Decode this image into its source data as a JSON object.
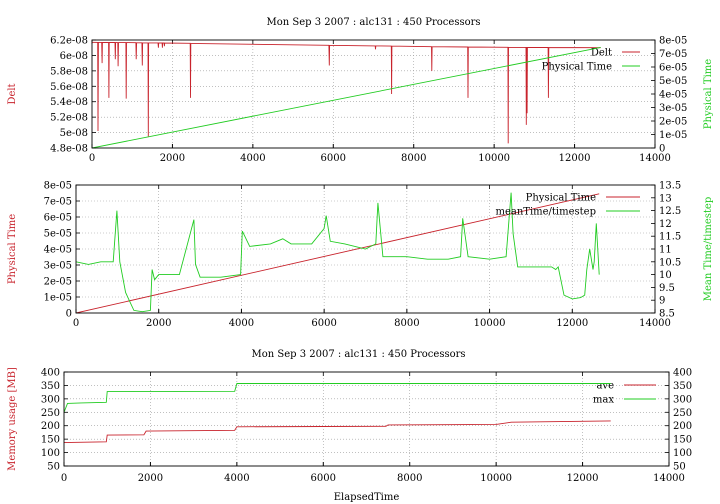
{
  "figure_background": "#ffffff",
  "chart_data": [
    {
      "type": "line",
      "title": "Mon Sep 3 2007 : alc131 : 450 Processors",
      "xlabel": "",
      "ylabel": "Delt",
      "y2label": "Physical Time",
      "ylabel_color": "#c8232c",
      "y2label_color": "#22cc22",
      "xlim": [
        0,
        14000
      ],
      "ylim": [
        4.8e-08,
        6.2e-08
      ],
      "y2lim": [
        0,
        8e-05
      ],
      "xticks": [
        "0",
        "2000",
        "4000",
        "6000",
        "8000",
        "10000",
        "12000",
        "14000"
      ],
      "yticks": [
        "4.8e-08",
        "5e-08",
        "5.2e-08",
        "5.4e-08",
        "5.6e-08",
        "5.8e-08",
        "6e-08",
        "6.2e-08"
      ],
      "y2ticks": [
        "0",
        "1e-05",
        "2e-05",
        "3e-05",
        "4e-05",
        "5e-05",
        "6e-05",
        "7e-05",
        "8e-05"
      ],
      "grid": true,
      "legend_position": "top-right",
      "series": [
        {
          "name": "Delt",
          "color": "#c8232c",
          "axis": "y",
          "baseline": [
            [
              0,
              6.17e-08
            ],
            [
              2000,
              6.16e-08
            ],
            [
              6000,
              6.13e-08
            ],
            [
              9000,
              6.11e-08
            ],
            [
              12000,
              6.1e-08
            ],
            [
              12650,
              6.1e-08
            ]
          ],
          "dips": [
            [
              150,
              5.02e-08
            ],
            [
              250,
              5.9e-08
            ],
            [
              420,
              5.45e-08
            ],
            [
              580,
              5.95e-08
            ],
            [
              650,
              5.86e-08
            ],
            [
              850,
              5.44e-08
            ],
            [
              1100,
              5.95e-08
            ],
            [
              1250,
              5.87e-08
            ],
            [
              1400,
              4.95e-08
            ],
            [
              1650,
              6.1e-08
            ],
            [
              1750,
              6.1e-08
            ],
            [
              1800,
              6.12e-08
            ],
            [
              2450,
              5.45e-08
            ],
            [
              5900,
              5.87e-08
            ],
            [
              7050,
              6.08e-08
            ],
            [
              7450,
              5.5e-08
            ],
            [
              8450,
              5.8e-08
            ],
            [
              9350,
              5.45e-08
            ],
            [
              10350,
              4.86e-08
            ],
            [
              10800,
              5.1e-08
            ],
            [
              10820,
              5.25e-08
            ],
            [
              11350,
              5.45e-08
            ]
          ]
        },
        {
          "name": "Physical Time",
          "color": "#22cc22",
          "axis": "y2",
          "x": [
            0,
            12650
          ],
          "y": [
            0,
            7.45e-05
          ]
        }
      ]
    },
    {
      "type": "line",
      "title": "",
      "xlabel": "",
      "ylabel": "Physical Time",
      "y2label": "Mean Time/timestep",
      "ylabel_color": "#c8232c",
      "y2label_color": "#22cc22",
      "xlim": [
        0,
        14000
      ],
      "ylim": [
        0,
        8e-05
      ],
      "y2lim": [
        8.5,
        13.5
      ],
      "xticks": [
        "0",
        "2000",
        "4000",
        "6000",
        "8000",
        "10000",
        "12000",
        "14000"
      ],
      "yticks": [
        "0",
        "1e-05",
        "2e-05",
        "3e-05",
        "4e-05",
        "5e-05",
        "6e-05",
        "7e-05",
        "8e-05"
      ],
      "y2ticks": [
        "8.5",
        "9",
        "9.5",
        "10",
        "10.5",
        "11",
        "11.5",
        "12",
        "12.5",
        "13",
        "13.5"
      ],
      "grid": true,
      "legend_position": "top-right",
      "series": [
        {
          "name": "Physical Time",
          "color": "#c8232c",
          "axis": "y",
          "x": [
            0,
            12650
          ],
          "y": [
            0,
            7.45e-05
          ]
        },
        {
          "name": "meanTime/timestep",
          "color": "#22cc22",
          "axis": "y2",
          "x": [
            0,
            300,
            600,
            900,
            990,
            1060,
            1200,
            1400,
            1600,
            1800,
            1840,
            1900,
            2000,
            2500,
            2850,
            2890,
            3000,
            3500,
            3980,
            4020,
            4200,
            4700,
            5000,
            5200,
            5700,
            6000,
            6050,
            6150,
            6500,
            7000,
            7250,
            7300,
            7420,
            8000,
            8500,
            9000,
            9300,
            9350,
            9480,
            10000,
            10400,
            10520,
            10570,
            10680,
            11000,
            11500,
            11600,
            11660,
            11800,
            12000,
            12200,
            12300,
            12350,
            12420,
            12500,
            12530,
            12580,
            12650
          ],
          "y": [
            10.5,
            10.4,
            10.5,
            10.5,
            12.5,
            10.5,
            9.3,
            8.6,
            8.55,
            8.6,
            10.2,
            9.8,
            10.0,
            10.0,
            12.15,
            10.4,
            9.9,
            9.9,
            10.0,
            11.7,
            11.1,
            11.2,
            11.4,
            11.2,
            11.2,
            11.8,
            12.3,
            11.3,
            11.2,
            11.0,
            11.2,
            12.8,
            10.7,
            10.7,
            10.6,
            10.6,
            10.7,
            12.2,
            10.7,
            10.6,
            10.7,
            13.2,
            11.6,
            10.3,
            10.3,
            10.3,
            10.2,
            10.3,
            9.2,
            9.05,
            9.1,
            9.2,
            10.2,
            11.0,
            10.2,
            10.5,
            12.0,
            10.0
          ]
        }
      ]
    },
    {
      "type": "line",
      "title": "Mon Sep 3 2007 : alc131 : 450 Processors",
      "xlabel": "ElapsedTime",
      "ylabel": "Memory usage [MB]",
      "ylabel_color": "#c8232c",
      "xlim": [
        0,
        14000
      ],
      "ylim": [
        50,
        400
      ],
      "y2lim": [
        50,
        400
      ],
      "xticks": [
        "0",
        "2000",
        "4000",
        "6000",
        "8000",
        "10000",
        "12000",
        "14000"
      ],
      "yticks": [
        "50",
        "100",
        "150",
        "200",
        "250",
        "300",
        "350",
        "400"
      ],
      "y2ticks": [
        "50",
        "100",
        "150",
        "200",
        "250",
        "300",
        "350",
        "400"
      ],
      "grid": true,
      "legend_position": "top-right",
      "series": [
        {
          "name": "ave",
          "color": "#c8232c",
          "axis": "y",
          "x": [
            0,
            980,
            1000,
            1850,
            1900,
            3950,
            4000,
            6000,
            7450,
            7500,
            10000,
            10350,
            12650
          ],
          "y": [
            137,
            140,
            165,
            166,
            180,
            183,
            196,
            197,
            198,
            203,
            205,
            213,
            218
          ]
        },
        {
          "name": "max",
          "color": "#22cc22",
          "axis": "y",
          "x": [
            0,
            80,
            400,
            980,
            1000,
            3950,
            4000,
            12650
          ],
          "y": [
            250,
            283,
            285,
            287,
            327,
            328,
            357,
            357
          ]
        }
      ]
    }
  ]
}
